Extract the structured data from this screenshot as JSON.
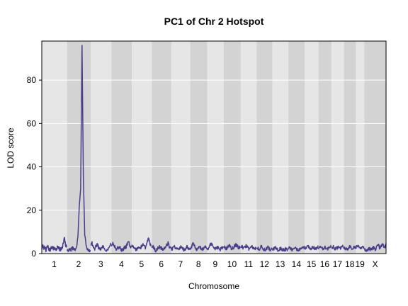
{
  "chart_data": {
    "type": "line",
    "title": "PC1 of Chr 2 Hotspot",
    "xlabel": "Chromosome",
    "ylabel": "LOD score",
    "ylim": [
      0,
      98
    ],
    "y_ticks": [
      0,
      20,
      40,
      60,
      80
    ],
    "grid": true,
    "legend": "none",
    "chromosomes": [
      {
        "label": "1",
        "length": 195
      },
      {
        "label": "2",
        "length": 182
      },
      {
        "label": "3",
        "length": 160
      },
      {
        "label": "4",
        "length": 157
      },
      {
        "label": "5",
        "length": 152
      },
      {
        "label": "6",
        "length": 150
      },
      {
        "label": "7",
        "length": 145
      },
      {
        "label": "8",
        "length": 130
      },
      {
        "label": "9",
        "length": 125
      },
      {
        "label": "10",
        "length": 131
      },
      {
        "label": "11",
        "length": 122
      },
      {
        "label": "12",
        "length": 120
      },
      {
        "label": "13",
        "length": 121
      },
      {
        "label": "14",
        "length": 125
      },
      {
        "label": "15",
        "length": 104
      },
      {
        "label": "16",
        "length": 98
      },
      {
        "label": "17",
        "length": 95
      },
      {
        "label": "18",
        "length": 91
      },
      {
        "label": "19",
        "length": 61
      },
      {
        "label": "X",
        "length": 171
      }
    ],
    "series": [
      {
        "color": "#483d8b",
        "points": [
          {
            "chr": "1",
            "values": [
              2.5,
              3.5,
              2,
              3,
              1.5,
              2.8,
              3.2,
              2,
              1.5,
              2.4,
              3,
              2.2,
              2.6,
              1.8,
              2.1,
              2.9,
              3.3,
              2.2,
              1.6,
              2.5,
              3.0,
              5.5,
              7.8,
              4.0,
              3.2
            ]
          },
          {
            "chr": "2",
            "values": [
              2.0,
              1.5,
              2.2,
              1.8,
              2.5,
              2.0,
              1.7,
              3.0,
              8.0,
              22.0,
              30.0,
              96.0,
              35.0,
              9.0,
              4.0,
              2.0,
              1.5,
              1.2
            ]
          },
          {
            "chr": "3",
            "values": [
              3.5,
              4.8,
              3.0,
              2.2,
              3.5,
              4.0,
              2.5,
              1.8,
              2.2,
              3.0,
              2.8,
              2.0,
              1.5,
              2.5,
              3.6,
              4.2
            ]
          },
          {
            "chr": "4",
            "values": [
              3.0,
              4.5,
              3.6,
              2.4,
              2.0,
              2.8,
              3.2,
              2.0,
              1.6,
              2.2,
              2.8,
              3.0,
              4.8,
              5.2,
              3.0,
              2.6
            ]
          },
          {
            "chr": "5",
            "values": [
              3.5,
              2.8,
              2.0,
              1.7,
              2.5,
              3.0,
              2.2,
              3.6,
              4.5,
              3.2,
              2.5,
              5.0,
              7.2,
              4.5,
              3.0
            ]
          },
          {
            "chr": "6",
            "values": [
              2.5,
              3.0,
              2.0,
              1.5,
              2.0,
              2.8,
              3.2,
              2.4,
              1.8,
              2.2,
              3.0,
              4.0,
              4.8,
              3.0,
              2.0
            ]
          },
          {
            "chr": "7",
            "values": [
              2.0,
              2.5,
              3.2,
              2.4,
              1.8,
              2.0,
              2.6,
              3.0,
              2.2,
              1.6,
              2.2,
              3.4,
              2.5,
              2.0
            ]
          },
          {
            "chr": "8",
            "values": [
              2.5,
              3.0,
              5.2,
              3.8,
              2.5,
              2.0,
              2.8,
              3.2,
              2.4,
              1.8,
              2.5,
              3.0,
              2.2
            ]
          },
          {
            "chr": "9",
            "values": [
              2.0,
              2.6,
              3.8,
              5.0,
              3.0,
              2.2,
              2.6,
              3.0,
              2.4,
              1.8,
              2.4,
              3.0
            ]
          },
          {
            "chr": "10",
            "values": [
              2.5,
              3.0,
              2.2,
              3.2,
              3.8,
              3.0,
              2.2,
              2.8,
              3.6,
              4.0,
              3.2,
              2.6,
              3.0
            ]
          },
          {
            "chr": "11",
            "values": [
              2.8,
              3.2,
              2.4,
              3.0,
              3.6,
              2.8,
              2.2,
              2.6,
              3.0,
              2.4,
              2.0,
              2.6
            ]
          },
          {
            "chr": "12",
            "values": [
              2.0,
              2.4,
              1.8,
              3.6,
              2.8,
              2.0,
              1.6,
              2.4,
              3.0,
              2.2,
              1.8,
              2.2
            ]
          },
          {
            "chr": "13",
            "values": [
              1.6,
              2.2,
              2.8,
              2.0,
              1.5,
              1.8,
              2.4,
              2.0,
              1.4,
              1.8,
              2.2,
              1.6
            ]
          },
          {
            "chr": "14",
            "values": [
              2.4,
              3.0,
              2.2,
              1.6,
              2.0,
              2.6,
              2.0,
              1.4,
              2.0,
              2.8,
              3.0,
              2.2
            ]
          },
          {
            "chr": "15",
            "values": [
              3.2,
              2.4,
              4.2,
              3.0,
              2.2,
              2.6,
              3.0,
              2.2,
              2.8,
              3.6
            ]
          },
          {
            "chr": "16",
            "values": [
              2.6,
              3.2,
              2.4,
              2.0,
              3.0,
              2.6,
              2.2,
              2.8,
              3.4
            ]
          },
          {
            "chr": "17",
            "values": [
              2.6,
              3.2,
              2.4,
              2.0,
              2.8,
              3.4,
              2.6,
              3.8,
              2.8
            ]
          },
          {
            "chr": "18",
            "values": [
              3.0,
              2.4,
              2.0,
              2.6,
              3.2,
              2.6,
              2.2,
              2.8,
              3.0
            ]
          },
          {
            "chr": "19",
            "values": [
              2.8,
              3.6,
              2.4,
              2.0,
              2.8,
              3.2
            ]
          },
          {
            "chr": "X",
            "values": [
              2.0,
              1.5,
              1.2,
              1.8,
              2.4,
              2.0,
              1.6,
              2.2,
              2.8,
              2.0,
              1.6,
              3.2,
              4.2,
              3.0,
              2.4,
              3.6,
              4.8,
              3.6,
              2.8,
              4.4
            ]
          }
        ]
      }
    ]
  },
  "colors": {
    "plot_band_dark": "#d3d3d3",
    "plot_band_light": "#e6e6e6",
    "gridline": "#ffffff",
    "frame": "#000000",
    "line": "#483d8b"
  }
}
